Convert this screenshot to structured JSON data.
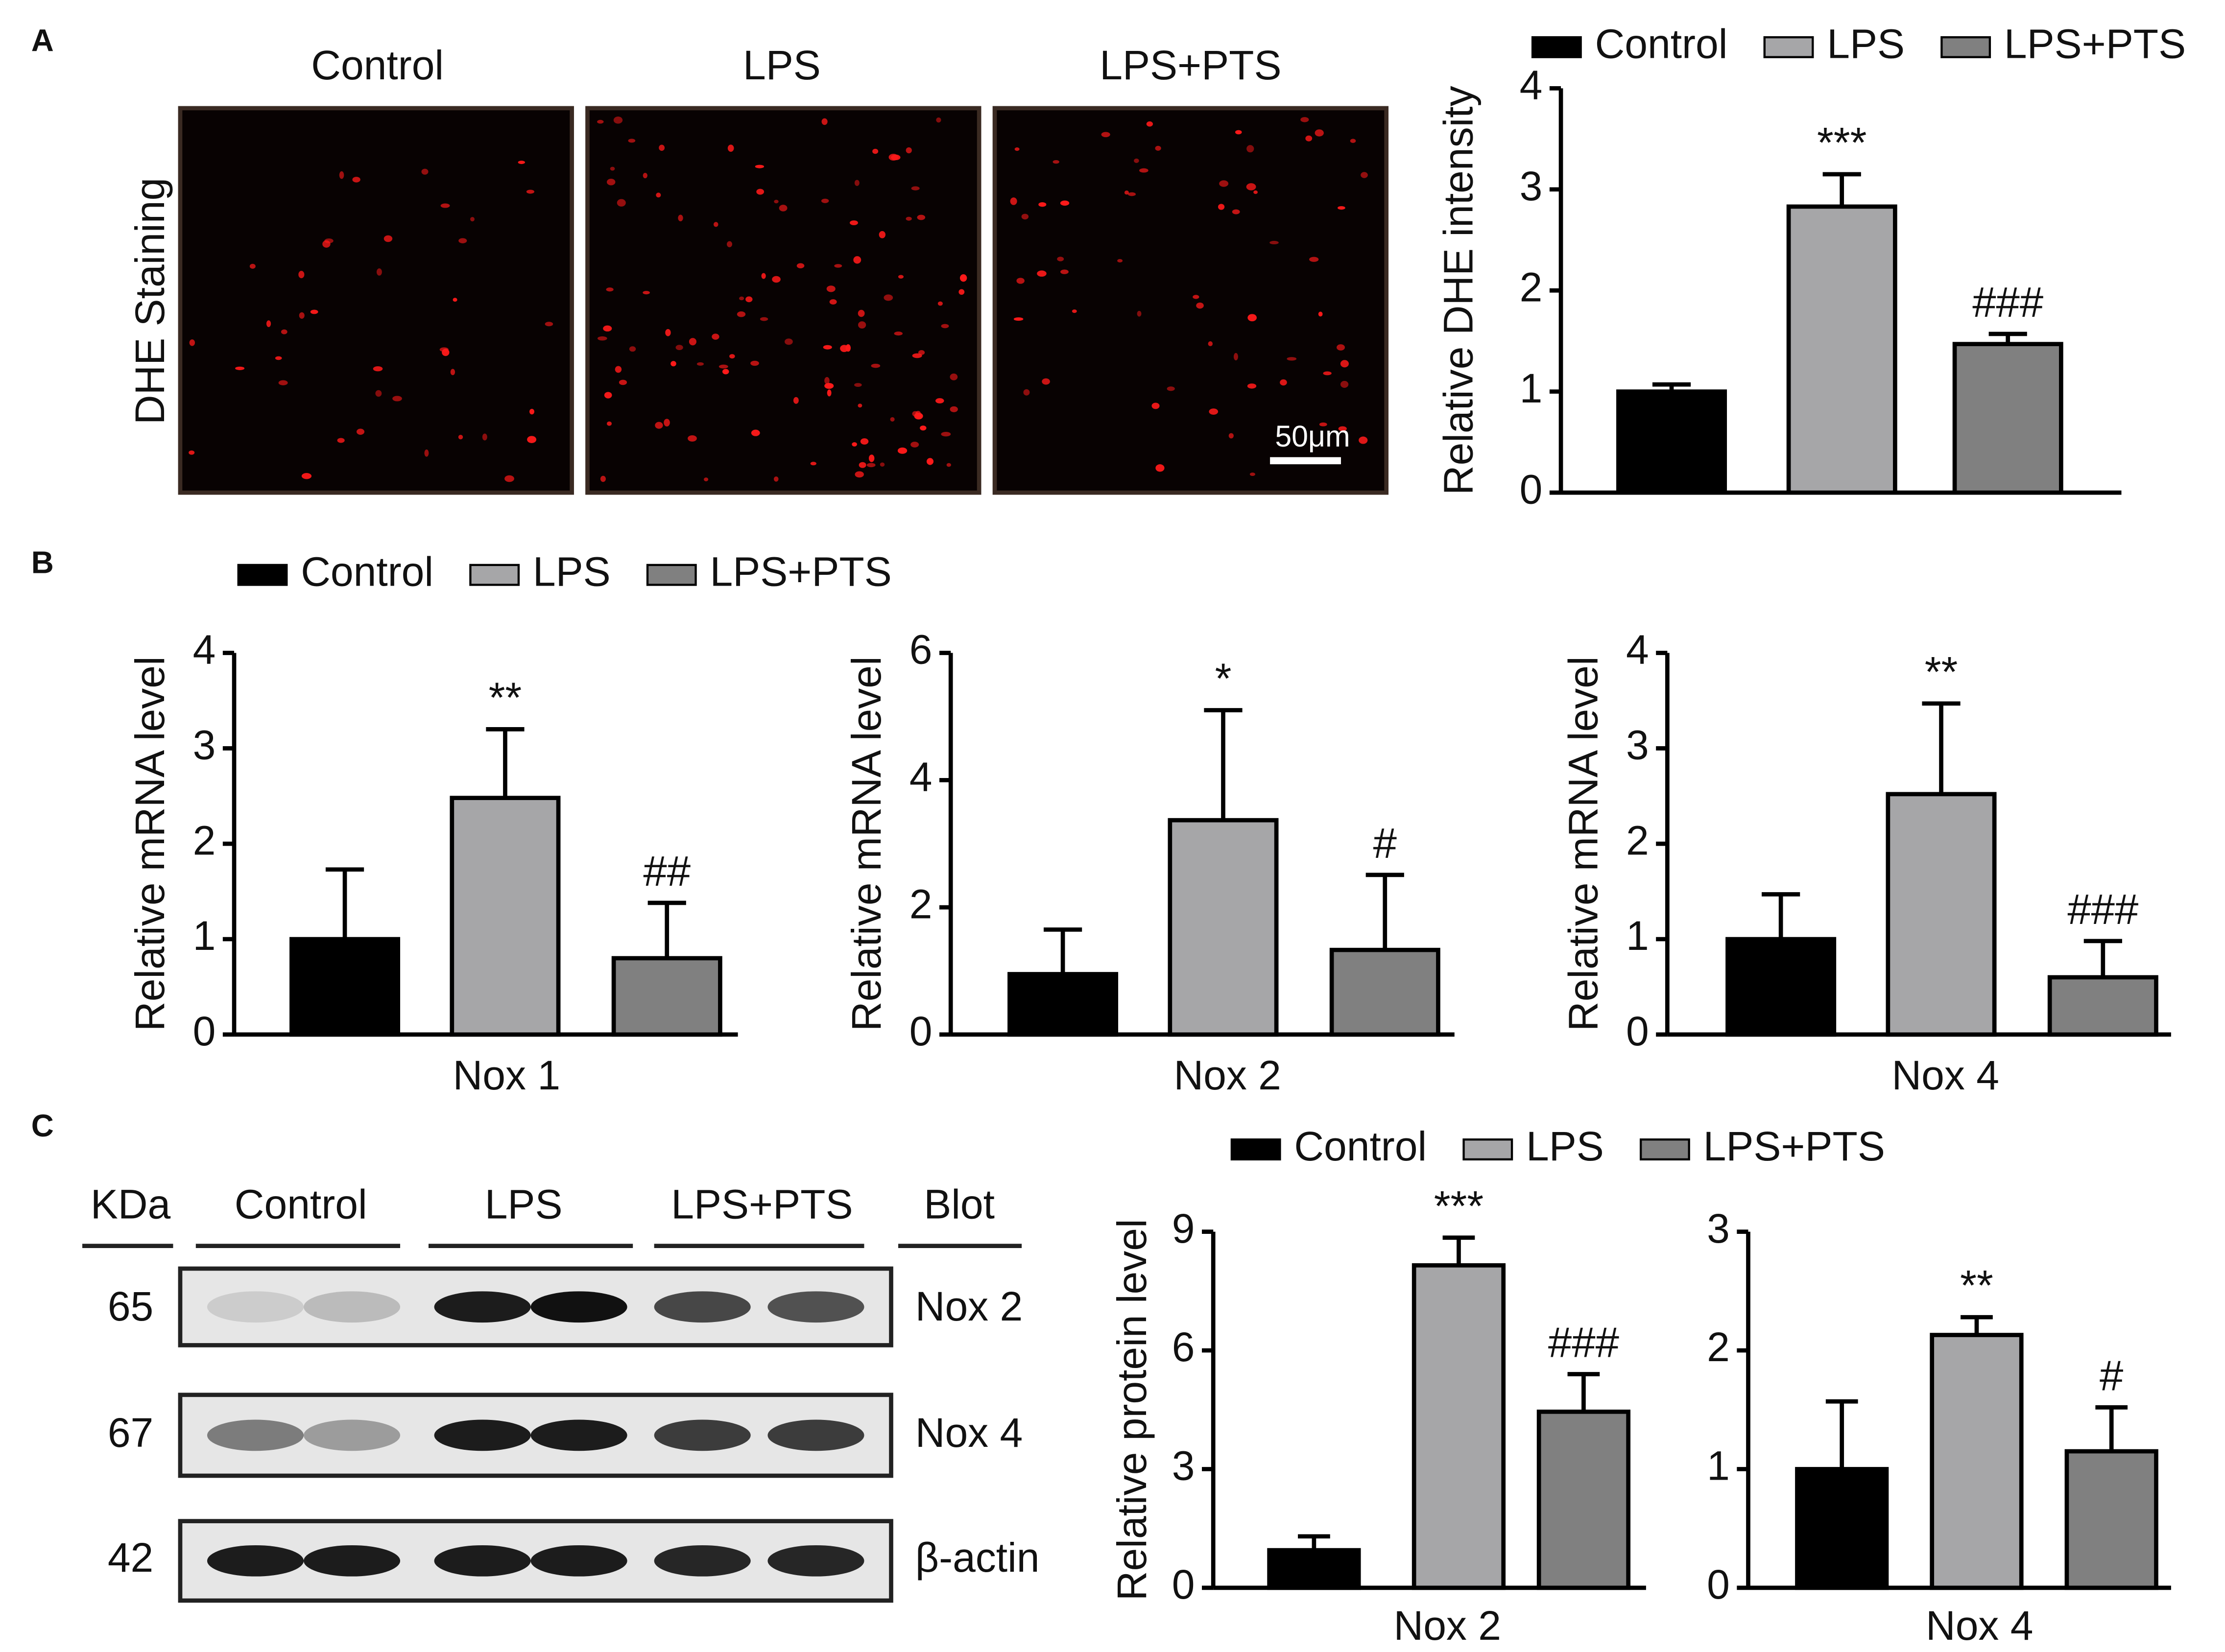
{
  "panels": [
    "A",
    "B",
    "C"
  ],
  "staining": {
    "label": "DHE Staining",
    "groups": [
      "Control",
      "LPS",
      "LPS+PTS"
    ],
    "scale_bar": "50μm"
  },
  "blot": {
    "unit_header": "KDa",
    "groups": [
      "Control",
      "LPS",
      "LPS+PTS"
    ],
    "blot_header": "Blot",
    "rows": [
      {
        "kda": 65,
        "name": "Nox 2"
      },
      {
        "kda": 67,
        "name": "Nox 4"
      },
      {
        "kda": 42,
        "name": "β-actin"
      }
    ]
  },
  "chart_data": [
    {
      "type": "bar",
      "ylabel": "Relative DHE intensity",
      "categories": [
        null
      ],
      "ylim": [
        0,
        4
      ],
      "yticks": [
        0,
        1,
        2,
        3,
        4
      ],
      "legend": "top",
      "series": [
        {
          "name": "Control",
          "color": "#000000",
          "values": [
            1.0
          ],
          "errors": [
            0.07
          ]
        },
        {
          "name": "LPS",
          "color": "#a6a6a8",
          "values": [
            2.83
          ],
          "errors": [
            0.32
          ],
          "annotations": [
            "***"
          ]
        },
        {
          "name": "LPS+PTS",
          "color": "#808080",
          "values": [
            1.47
          ],
          "errors": [
            0.1
          ],
          "annotations": [
            "###"
          ]
        }
      ]
    },
    {
      "type": "bar",
      "ylabel": "Relative mRNA level",
      "categories": [
        "Nox 1"
      ],
      "ylim": [
        0,
        4
      ],
      "yticks": [
        0,
        1,
        2,
        3,
        4
      ],
      "legend": "top",
      "series": [
        {
          "name": "Control",
          "color": "#000000",
          "values": [
            1.0
          ],
          "errors": [
            0.73
          ]
        },
        {
          "name": "LPS",
          "color": "#a6a6a8",
          "values": [
            2.48
          ],
          "errors": [
            0.72
          ],
          "annotations": [
            "**"
          ]
        },
        {
          "name": "LPS+PTS",
          "color": "#808080",
          "values": [
            0.8
          ],
          "errors": [
            0.58
          ],
          "annotations": [
            "##"
          ]
        }
      ]
    },
    {
      "type": "bar",
      "ylabel": "Relative mRNA level",
      "categories": [
        "Nox 2"
      ],
      "ylim": [
        0,
        6
      ],
      "yticks": [
        0,
        2,
        4,
        6
      ],
      "series": [
        {
          "color": "#000000",
          "values": [
            0.95
          ],
          "errors": [
            0.7
          ]
        },
        {
          "color": "#a6a6a8",
          "values": [
            3.37
          ],
          "errors": [
            1.73
          ],
          "annotations": [
            "*"
          ]
        },
        {
          "color": "#808080",
          "values": [
            1.33
          ],
          "errors": [
            1.18
          ],
          "annotations": [
            "#"
          ]
        }
      ]
    },
    {
      "type": "bar",
      "ylabel": "Relative mRNA level",
      "categories": [
        "Nox 4"
      ],
      "ylim": [
        0,
        4
      ],
      "yticks": [
        0,
        1,
        2,
        3,
        4
      ],
      "series": [
        {
          "color": "#000000",
          "values": [
            1.0
          ],
          "errors": [
            0.47
          ]
        },
        {
          "color": "#a6a6a8",
          "values": [
            2.52
          ],
          "errors": [
            0.95
          ],
          "annotations": [
            "**"
          ]
        },
        {
          "color": "#808080",
          "values": [
            0.6
          ],
          "errors": [
            0.38
          ],
          "annotations": [
            "###"
          ]
        }
      ]
    },
    {
      "type": "bar",
      "ylabel": "Relative protein level",
      "categories": [
        "Nox 2"
      ],
      "ylim": [
        0,
        9
      ],
      "yticks": [
        0,
        3,
        6,
        9
      ],
      "legend": "top",
      "series": [
        {
          "name": "Control",
          "color": "#000000",
          "values": [
            0.95
          ],
          "errors": [
            0.35
          ]
        },
        {
          "name": "LPS",
          "color": "#a6a6a8",
          "values": [
            8.15
          ],
          "errors": [
            0.7
          ],
          "annotations": [
            "***"
          ]
        },
        {
          "name": "LPS+PTS",
          "color": "#808080",
          "values": [
            4.45
          ],
          "errors": [
            0.95
          ],
          "annotations": [
            "###"
          ]
        }
      ]
    },
    {
      "type": "bar",
      "categories": [
        "Nox 4"
      ],
      "ylim": [
        0,
        3
      ],
      "yticks": [
        0,
        1,
        2,
        3
      ],
      "series": [
        {
          "color": "#000000",
          "values": [
            1.0
          ],
          "errors": [
            0.57
          ]
        },
        {
          "color": "#a6a6a8",
          "values": [
            2.13
          ],
          "errors": [
            0.15
          ],
          "annotations": [
            "**"
          ]
        },
        {
          "color": "#808080",
          "values": [
            1.15
          ],
          "errors": [
            0.37
          ],
          "annotations": [
            "#"
          ]
        }
      ]
    }
  ]
}
